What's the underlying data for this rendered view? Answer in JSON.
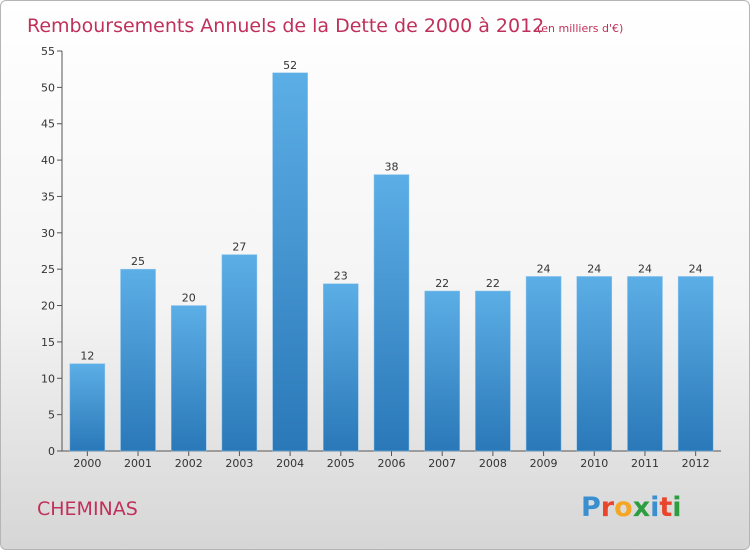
{
  "chart_data": {
    "type": "bar",
    "title": "Remboursements Annuels de la Dette de 2000 à 2012",
    "subtitle": "(en milliers d'€)",
    "categories": [
      "2000",
      "2001",
      "2002",
      "2003",
      "2004",
      "2005",
      "2006",
      "2007",
      "2008",
      "2009",
      "2010",
      "2011",
      "2012"
    ],
    "values": [
      12,
      25,
      20,
      27,
      52,
      23,
      38,
      22,
      22,
      24,
      24,
      24,
      24
    ],
    "ylim": [
      0,
      55
    ],
    "yticks": [
      0,
      5,
      10,
      15,
      20,
      25,
      30,
      35,
      40,
      45,
      50,
      55
    ],
    "grid": false,
    "bar_color": "#4a9fdd"
  },
  "footer": {
    "place": "CHEMINAS",
    "logo_letters": [
      "P",
      "r",
      "o",
      "x",
      "i",
      "t",
      "i"
    ],
    "logo_colors": [
      "#3a8fd0",
      "#e8452c",
      "#f5a623",
      "#2d9e3f",
      "#3a8fd0",
      "#e8452c",
      "#2d9e3f"
    ]
  }
}
